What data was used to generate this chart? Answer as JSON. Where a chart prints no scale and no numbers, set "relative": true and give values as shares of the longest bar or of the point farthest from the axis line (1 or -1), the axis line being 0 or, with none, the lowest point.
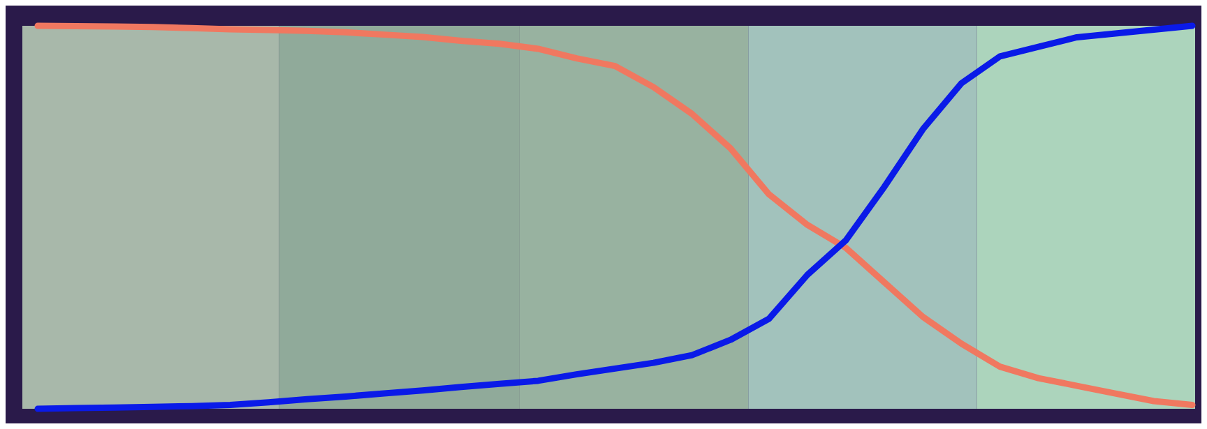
{
  "chart_data": {
    "type": "line",
    "relative": true,
    "categories": [
      null,
      null,
      null,
      null,
      null,
      null,
      null,
      null,
      null,
      null,
      null,
      null,
      null,
      null,
      null,
      null,
      null,
      null,
      null,
      null,
      null,
      null,
      null,
      null,
      null,
      null,
      null,
      null,
      null,
      null,
      null
    ],
    "series": [
      {
        "color": "#f07860",
        "values": [
          1.0,
          0.999,
          0.998,
          0.997,
          0.994,
          0.991,
          0.989,
          0.987,
          0.983,
          0.977,
          0.971,
          0.961,
          0.953,
          0.94,
          0.915,
          0.895,
          0.84,
          0.77,
          0.68,
          0.56,
          0.48,
          0.42,
          0.33,
          0.24,
          0.17,
          0.11,
          0.08,
          0.06,
          0.04,
          0.02,
          0.01
        ]
      },
      {
        "color": "#0a1ae8",
        "values": [
          0,
          0.002,
          0.003,
          0.005,
          0.007,
          0.01,
          0.017,
          0.025,
          0.032,
          0.04,
          0.048,
          0.057,
          0.065,
          0.073,
          0.09,
          0.105,
          0.12,
          0.14,
          0.18,
          0.235,
          0.35,
          0.44,
          0.58,
          0.73,
          0.85,
          0.92,
          0.945,
          0.97,
          0.98,
          0.99,
          1.0
        ]
      }
    ]
  }
}
